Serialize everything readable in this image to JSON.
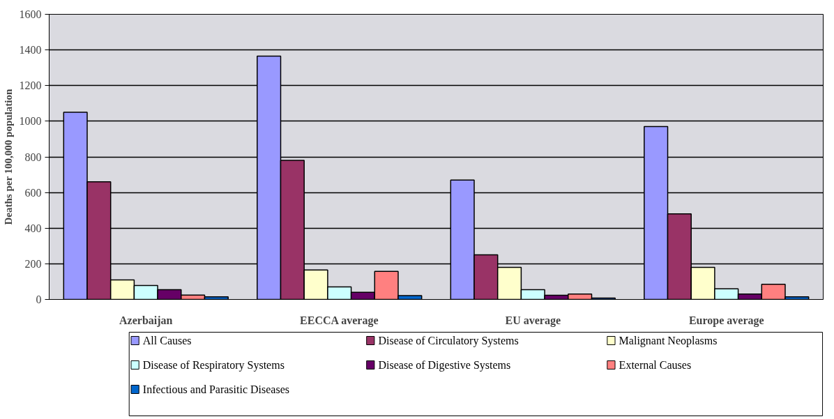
{
  "chart_data": {
    "type": "bar",
    "ylabel": "Deaths per 100,000 population",
    "categories": [
      "Azerbaijan",
      "EECCA average",
      "EU average",
      "Europe average"
    ],
    "series": [
      {
        "name": "All Causes",
        "color": "#9999ff",
        "values": [
          1050,
          1365,
          670,
          970
        ]
      },
      {
        "name": "Disease of Circulatory Systems",
        "color": "#993366",
        "values": [
          660,
          780,
          250,
          480
        ]
      },
      {
        "name": "Malignant Neoplasms",
        "color": "#ffffcc",
        "values": [
          110,
          165,
          180,
          180
        ]
      },
      {
        "name": "Disease of Respiratory Systems",
        "color": "#ccffff",
        "values": [
          78,
          70,
          55,
          60
        ]
      },
      {
        "name": "Disease of Digestive Systems",
        "color": "#660066",
        "values": [
          55,
          40,
          23,
          30
        ]
      },
      {
        "name": "External Causes",
        "color": "#ff8080",
        "values": [
          24,
          157,
          30,
          85
        ]
      },
      {
        "name": "Infectious and Parasitic Diseases",
        "color": "#0066cc",
        "values": [
          15,
          22,
          8,
          15
        ]
      }
    ],
    "ylim": [
      0,
      1600
    ],
    "yticks": [
      0,
      200,
      400,
      600,
      800,
      1000,
      1200,
      1400,
      1600
    ],
    "grid": "y",
    "legend": "bottom"
  }
}
